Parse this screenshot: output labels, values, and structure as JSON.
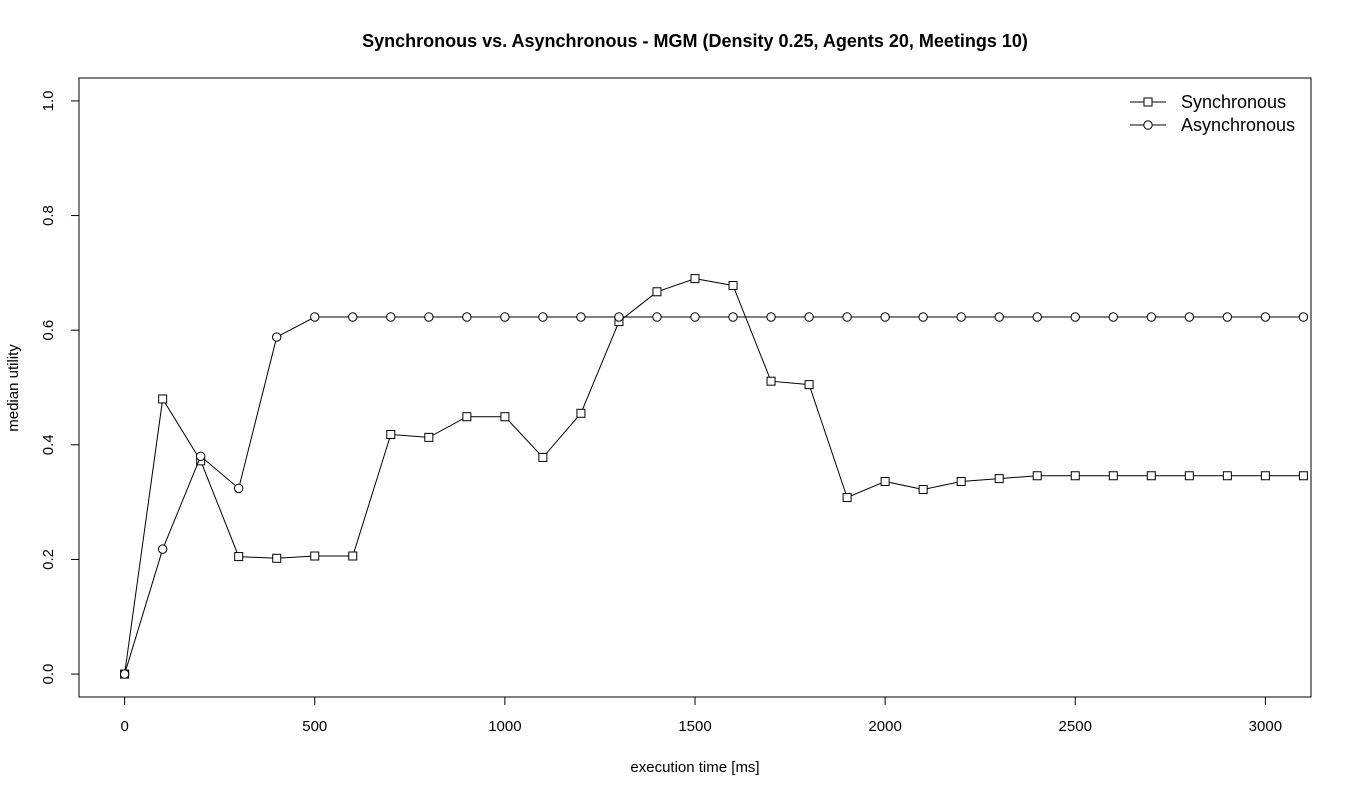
{
  "chart_data": {
    "type": "line",
    "title": "Synchronous vs. Asynchronous - MGM (Density 0.25, Agents 20, Meetings 10)",
    "xlabel": "execution time [ms]",
    "ylabel": "median utility",
    "xlim": [
      -120,
      3120
    ],
    "ylim": [
      -0.04,
      1.04
    ],
    "xticks": [
      0,
      500,
      1000,
      1500,
      2000,
      2500,
      3000
    ],
    "yticks": [
      0.0,
      0.2,
      0.4,
      0.6,
      0.8,
      1.0
    ],
    "ytick_labels": [
      "0.0",
      "0.2",
      "0.4",
      "0.6",
      "0.8",
      "1.0"
    ],
    "grid": false,
    "legend_position": "top-right",
    "x": [
      0,
      100,
      200,
      300,
      400,
      500,
      600,
      700,
      800,
      900,
      1000,
      1100,
      1200,
      1300,
      1400,
      1500,
      1600,
      1700,
      1800,
      1900,
      2000,
      2100,
      2200,
      2300,
      2400,
      2500,
      2600,
      2700,
      2800,
      2900,
      3000,
      3100
    ],
    "series": [
      {
        "name": "Synchronous",
        "marker": "square",
        "color": "#000000",
        "values": [
          0.0,
          0.48,
          0.372,
          0.205,
          0.202,
          0.206,
          0.206,
          0.418,
          0.413,
          0.449,
          0.449,
          0.378,
          0.455,
          0.615,
          0.667,
          0.69,
          0.678,
          0.511,
          0.505,
          0.308,
          0.336,
          0.322,
          0.336,
          0.341,
          0.346,
          0.346,
          0.346,
          0.346,
          0.346,
          0.346,
          0.346,
          0.346
        ]
      },
      {
        "name": "Asynchronous",
        "marker": "circle",
        "color": "#000000",
        "values": [
          0.0,
          0.218,
          0.38,
          0.324,
          0.588,
          0.623,
          0.623,
          0.623,
          0.623,
          0.623,
          0.623,
          0.623,
          0.623,
          0.623,
          0.623,
          0.623,
          0.623,
          0.623,
          0.623,
          0.623,
          0.623,
          0.623,
          0.623,
          0.623,
          0.623,
          0.623,
          0.623,
          0.623,
          0.623,
          0.623,
          0.623,
          0.623
        ]
      }
    ]
  }
}
